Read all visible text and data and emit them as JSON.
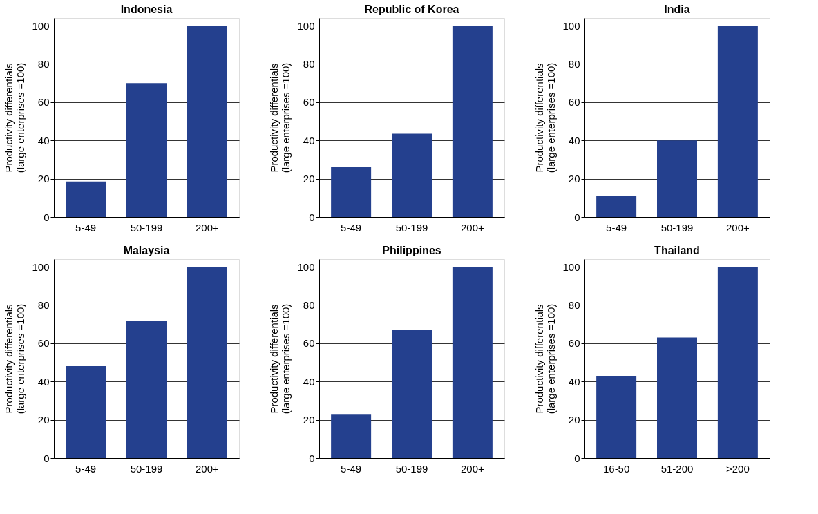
{
  "chart_data": [
    {
      "type": "bar",
      "title": "Indonesia",
      "ylabel": "Productivity differentials\n(large enterprises =100)",
      "categories": [
        "5-49",
        "50-199",
        "200+"
      ],
      "values": [
        18.5,
        70,
        100
      ],
      "color": "#24408e",
      "ylim": [
        0,
        104
      ],
      "yticks": [
        0,
        20,
        40,
        60,
        80,
        100
      ],
      "grid": "y",
      "legend": false
    },
    {
      "type": "bar",
      "title": "Republic of Korea",
      "ylabel": "Productivity differentials\n(large enterprises =100)",
      "categories": [
        "5-49",
        "50-199",
        "200+"
      ],
      "values": [
        26,
        43.5,
        100
      ],
      "color": "#24408e",
      "ylim": [
        0,
        104
      ],
      "yticks": [
        0,
        20,
        40,
        60,
        80,
        100
      ],
      "grid": "y",
      "legend": false
    },
    {
      "type": "bar",
      "title": "India",
      "ylabel": "Productivity differentials\n(large enterprises =100)",
      "categories": [
        "5-49",
        "50-199",
        "200+"
      ],
      "values": [
        11,
        40,
        100
      ],
      "color": "#24408e",
      "ylim": [
        0,
        104
      ],
      "yticks": [
        0,
        20,
        40,
        60,
        80,
        100
      ],
      "grid": "y",
      "legend": false
    },
    {
      "type": "bar",
      "title": "Malaysia",
      "ylabel": "Productivity differentials\n(large enterprises =100)",
      "categories": [
        "5-49",
        "50-199",
        "200+"
      ],
      "values": [
        48,
        71.5,
        100
      ],
      "color": "#24408e",
      "ylim": [
        0,
        104
      ],
      "yticks": [
        0,
        20,
        40,
        60,
        80,
        100
      ],
      "grid": "y",
      "legend": false
    },
    {
      "type": "bar",
      "title": "Philippines",
      "ylabel": "Productivity differentials\n(large enterprises =100)",
      "categories": [
        "5-49",
        "50-199",
        "200+"
      ],
      "values": [
        23,
        67,
        100
      ],
      "color": "#24408e",
      "ylim": [
        0,
        104
      ],
      "yticks": [
        0,
        20,
        40,
        60,
        80,
        100
      ],
      "grid": "y",
      "legend": false
    },
    {
      "type": "bar",
      "title": "Thailand",
      "ylabel": "Productivity differentials\n(large enterprises =100)",
      "categories": [
        "16-50",
        "51-200",
        ">200"
      ],
      "values": [
        43,
        63,
        100
      ],
      "color": "#24408e",
      "ylim": [
        0,
        104
      ],
      "yticks": [
        0,
        20,
        40,
        60,
        80,
        100
      ],
      "grid": "y",
      "legend": false
    }
  ]
}
